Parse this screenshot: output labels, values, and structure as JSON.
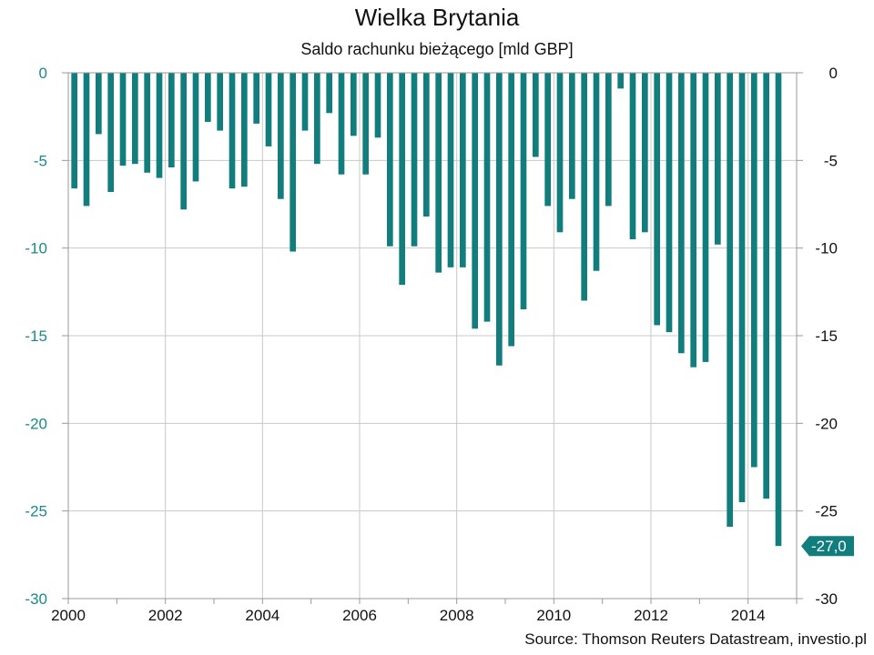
{
  "chart_data": {
    "type": "bar",
    "title": "Wielka Brytania",
    "subtitle": "Saldo rachunku bieżącego [mld GBP]",
    "source": "Source: Thomson Reuters Datastream, investio.pl",
    "ylim": [
      -30,
      0
    ],
    "yticks": [
      0,
      -5,
      -10,
      -15,
      -20,
      -25,
      -30
    ],
    "ytick_labels": [
      "0",
      "-5",
      "-10",
      "-15",
      "-20",
      "-25",
      "-30"
    ],
    "xlim": [
      2000,
      2015
    ],
    "xticks": [
      2000,
      2002,
      2004,
      2006,
      2008,
      2010,
      2012,
      2014
    ],
    "xtick_labels": [
      "2000",
      "2002",
      "2004",
      "2006",
      "2008",
      "2010",
      "2012",
      "2014"
    ],
    "grid": true,
    "bar_color": "#127d7d",
    "left_axis_color": "#1a8a8a",
    "last_value_label": "-27,0",
    "x": [
      "2000Q1",
      "2000Q2",
      "2000Q3",
      "2000Q4",
      "2001Q1",
      "2001Q2",
      "2001Q3",
      "2001Q4",
      "2002Q1",
      "2002Q2",
      "2002Q3",
      "2002Q4",
      "2003Q1",
      "2003Q2",
      "2003Q3",
      "2003Q4",
      "2004Q1",
      "2004Q2",
      "2004Q3",
      "2004Q4",
      "2005Q1",
      "2005Q2",
      "2005Q3",
      "2005Q4",
      "2006Q1",
      "2006Q2",
      "2006Q3",
      "2006Q4",
      "2007Q1",
      "2007Q2",
      "2007Q3",
      "2007Q4",
      "2008Q1",
      "2008Q2",
      "2008Q3",
      "2008Q4",
      "2009Q1",
      "2009Q2",
      "2009Q3",
      "2009Q4",
      "2010Q1",
      "2010Q2",
      "2010Q3",
      "2010Q4",
      "2011Q1",
      "2011Q2",
      "2011Q3",
      "2011Q4",
      "2012Q1",
      "2012Q2",
      "2012Q3",
      "2012Q4",
      "2013Q1",
      "2013Q2",
      "2013Q3",
      "2013Q4",
      "2014Q1",
      "2014Q2",
      "2014Q3"
    ],
    "values": [
      -6.6,
      -7.6,
      -3.5,
      -6.8,
      -5.3,
      -5.2,
      -5.7,
      -6.0,
      -5.4,
      -7.8,
      -6.2,
      -2.8,
      -3.3,
      -6.6,
      -6.5,
      -2.9,
      -4.2,
      -7.2,
      -10.2,
      -3.3,
      -5.2,
      -2.3,
      -5.8,
      -3.6,
      -5.8,
      -3.7,
      -9.9,
      -12.1,
      -9.9,
      -8.2,
      -11.4,
      -11.1,
      -11.1,
      -14.6,
      -14.2,
      -16.7,
      -15.6,
      -13.5,
      -4.8,
      -7.6,
      -9.1,
      -7.2,
      -13.0,
      -11.3,
      -7.6,
      -0.9,
      -9.5,
      -9.1,
      -14.4,
      -14.8,
      -16.0,
      -16.8,
      -16.5,
      -9.8,
      -25.9,
      -24.5,
      -22.5,
      -24.3,
      -27.0
    ]
  }
}
